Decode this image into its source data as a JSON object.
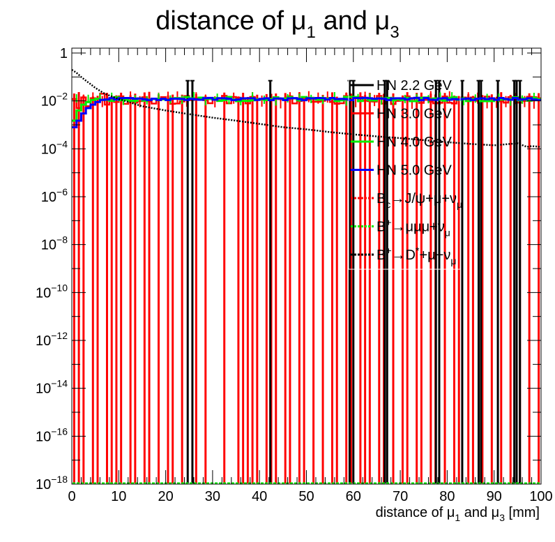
{
  "chart_data": {
    "type": "line",
    "title": "distance of μ₁ and μ₃",
    "title_parts": {
      "base": "distance of μ",
      "sub1": "1",
      "mid": " and μ",
      "sub2": "3"
    },
    "xlabel": "distance of μ₁ and μ₃ [mm]",
    "xlabel_parts": {
      "base": "distance of μ",
      "sub1": "1",
      "mid": " and μ",
      "sub2": "3",
      "unit": " [mm]"
    },
    "ylabel": "",
    "xlim": [
      0,
      100
    ],
    "ylim": [
      1e-18,
      1.6
    ],
    "yscale": "log",
    "grid": false,
    "legend_position": "top-right",
    "x_ticks": [
      "0",
      "10",
      "20",
      "30",
      "40",
      "50",
      "60",
      "70",
      "80",
      "90",
      "100"
    ],
    "y_ticks": [
      {
        "base": "1",
        "exp": ""
      },
      {
        "base": "10",
        "exp": "−2"
      },
      {
        "base": "10",
        "exp": "−4"
      },
      {
        "base": "10",
        "exp": "−6"
      },
      {
        "base": "10",
        "exp": "−8"
      },
      {
        "base": "10",
        "exp": "−10"
      },
      {
        "base": "10",
        "exp": "−12"
      },
      {
        "base": "10",
        "exp": "−14"
      },
      {
        "base": "10",
        "exp": "−16"
      },
      {
        "base": "10",
        "exp": "−18"
      }
    ],
    "series": [
      {
        "name": "HN 2.2 GeV",
        "color": "#000000",
        "style": "solid",
        "legend": {
          "text": "HN 2.2 GeV"
        },
        "spikes_x": [
          24.7,
          25.7,
          42.3,
          59.2,
          60.0,
          66.7,
          67.2,
          77.6,
          78.3,
          83.2,
          86.7,
          87.2,
          90.8,
          94.3,
          94.8,
          95.5
        ],
        "spike_y": 0.07
      },
      {
        "name": "HN 3.0 GeV",
        "color": "#ff0000",
        "style": "solid",
        "legend": {
          "text": "HN 3.0 GeV"
        },
        "level": 0.011,
        "first_x": [
          0.3,
          1.3,
          2.3,
          3.3,
          4.3,
          5.3,
          6.3,
          7.3,
          8.3,
          9.3
        ],
        "first_y": [
          0.012,
          0.005,
          0.014,
          0.006,
          0.013,
          0.009,
          0.02,
          0.007,
          0.012,
          0.009
        ],
        "spikes_x": [
          0.5,
          1.5,
          2.5,
          4.5,
          5.5,
          7.5,
          8.5,
          9.5,
          10.5,
          12.5,
          13.5,
          15.5,
          16.5,
          18.5,
          20.5,
          21.5,
          23.5,
          26.5,
          28.5,
          32.5,
          35.5,
          36.5,
          37.5,
          38.5,
          39.5,
          41.5,
          42.5,
          43.5,
          45.5,
          46.5,
          48.5,
          49.5,
          51.5,
          53.5,
          55.5,
          56.5,
          58.5,
          59.5,
          61.5,
          62.5,
          63.5,
          65.5,
          66.5,
          68.5,
          70.5,
          71.5,
          73.5,
          74.5,
          76.5,
          77.5,
          79.5,
          81.5,
          82.5,
          84.5,
          85.5,
          87.5,
          89.5,
          91.5,
          93.5,
          95.5,
          97.5,
          99.5
        ],
        "spike_y": 0.011
      },
      {
        "name": "HN 4.0 GeV",
        "color": "#00ee00",
        "style": "solid",
        "legend": {
          "text": "HN 4.0 GeV"
        },
        "level": 0.012,
        "first_x": [
          0.3,
          1.3,
          2.3,
          3.3,
          4.3
        ],
        "first_y": [
          0.0015,
          0.004,
          0.007,
          0.009,
          0.011
        ]
      },
      {
        "name": "HN 5.0 GeV",
        "color": "#0000ff",
        "style": "solid",
        "legend": {
          "text": "HN 5.0 GeV"
        },
        "level": 0.012,
        "first_x": [
          0.3,
          1.3,
          2.3,
          3.3,
          4.3,
          5.3
        ],
        "first_y": [
          0.0008,
          0.0015,
          0.003,
          0.005,
          0.007,
          0.009
        ]
      },
      {
        "name": "Bc→J/ψ+μ+νμ",
        "color": "#ff0000",
        "style": "dotted",
        "legend": {
          "parts": [
            {
              "t": "B"
            },
            {
              "t": "c",
              "sub": true
            },
            {
              "t": "→J/ψ+μ+ν"
            },
            {
              "t": "μ",
              "sub": true
            }
          ]
        }
      },
      {
        "name": "B+→μμμ+νμ",
        "color": "#00ee00",
        "style": "dotted",
        "legend": {
          "parts": [
            {
              "t": "B"
            },
            {
              "t": "+",
              "sup": true
            },
            {
              "t": "→μμμ+ν"
            },
            {
              "t": "μ",
              "sub": true
            }
          ]
        }
      },
      {
        "name": "B+→D*+μ+νμ",
        "color": "#000000",
        "style": "dotted",
        "legend": {
          "parts": [
            {
              "t": "B"
            },
            {
              "t": "+",
              "sup": true
            },
            {
              "t": "→D"
            },
            {
              "t": "*",
              "sup": true
            },
            {
              "t": "+μ+ν"
            },
            {
              "t": "μ",
              "sub": true
            }
          ]
        },
        "x": [
          0,
          1,
          2,
          3,
          4,
          5,
          7,
          10,
          15,
          20,
          25,
          30,
          35,
          40,
          45,
          50,
          55,
          60,
          65,
          70,
          75,
          80,
          85,
          90,
          95,
          97,
          98,
          100
        ],
        "y": [
          0.2,
          0.15,
          0.1,
          0.07,
          0.05,
          0.035,
          0.02,
          0.012,
          0.006,
          0.004,
          0.0028,
          0.002,
          0.0015,
          0.0011,
          0.0008,
          0.00065,
          0.0005,
          0.0004,
          0.00033,
          0.00028,
          0.00023,
          0.00019,
          0.00016,
          0.00014,
          0.00017,
          0.00012,
          0.00013,
          0.00012
        ]
      }
    ]
  }
}
